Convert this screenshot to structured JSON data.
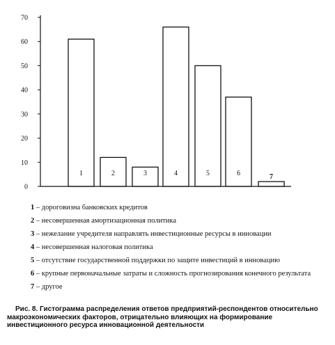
{
  "chart_data": {
    "type": "bar",
    "categories": [
      "1",
      "2",
      "3",
      "4",
      "5",
      "6",
      "7"
    ],
    "values": [
      61,
      12,
      8,
      66,
      50,
      37,
      2
    ],
    "ylim": [
      0,
      70
    ],
    "yticks": [
      0,
      10,
      20,
      30,
      40,
      50,
      60,
      70
    ],
    "bar_labels": [
      "1",
      "2",
      "3",
      "4",
      "5",
      "6",
      "7"
    ],
    "grid": false,
    "legend": [
      {
        "key": "1",
        "text": "дороговизна банковских кредитов"
      },
      {
        "key": "2",
        "text": "несовершенная амортизационная политика"
      },
      {
        "key": "3",
        "text": "нежелание учредителя направлять инвестиционные ресурсы в инновации"
      },
      {
        "key": "4",
        "text": "несовершенная налоговая политика"
      },
      {
        "key": "5",
        "text": "отсутствие  государственной поддержки по защите инвестиций в инновацию"
      },
      {
        "key": "6",
        "text": "крупные первоначальные затраты и сложность прогнозирования конечного результата"
      },
      {
        "key": "7",
        "text": "другое"
      }
    ],
    "caption": "Рис. 8. Гистограмма распределения ответов предприятий-респондентов относительно макроэкономических факторов, отрицательно влияющих на формирование инвестиционного ресурса инновационной деятельности",
    "colors": {
      "bar_fill": "#ffffff",
      "bar_stroke": "#111111",
      "axis": "#111111"
    }
  }
}
